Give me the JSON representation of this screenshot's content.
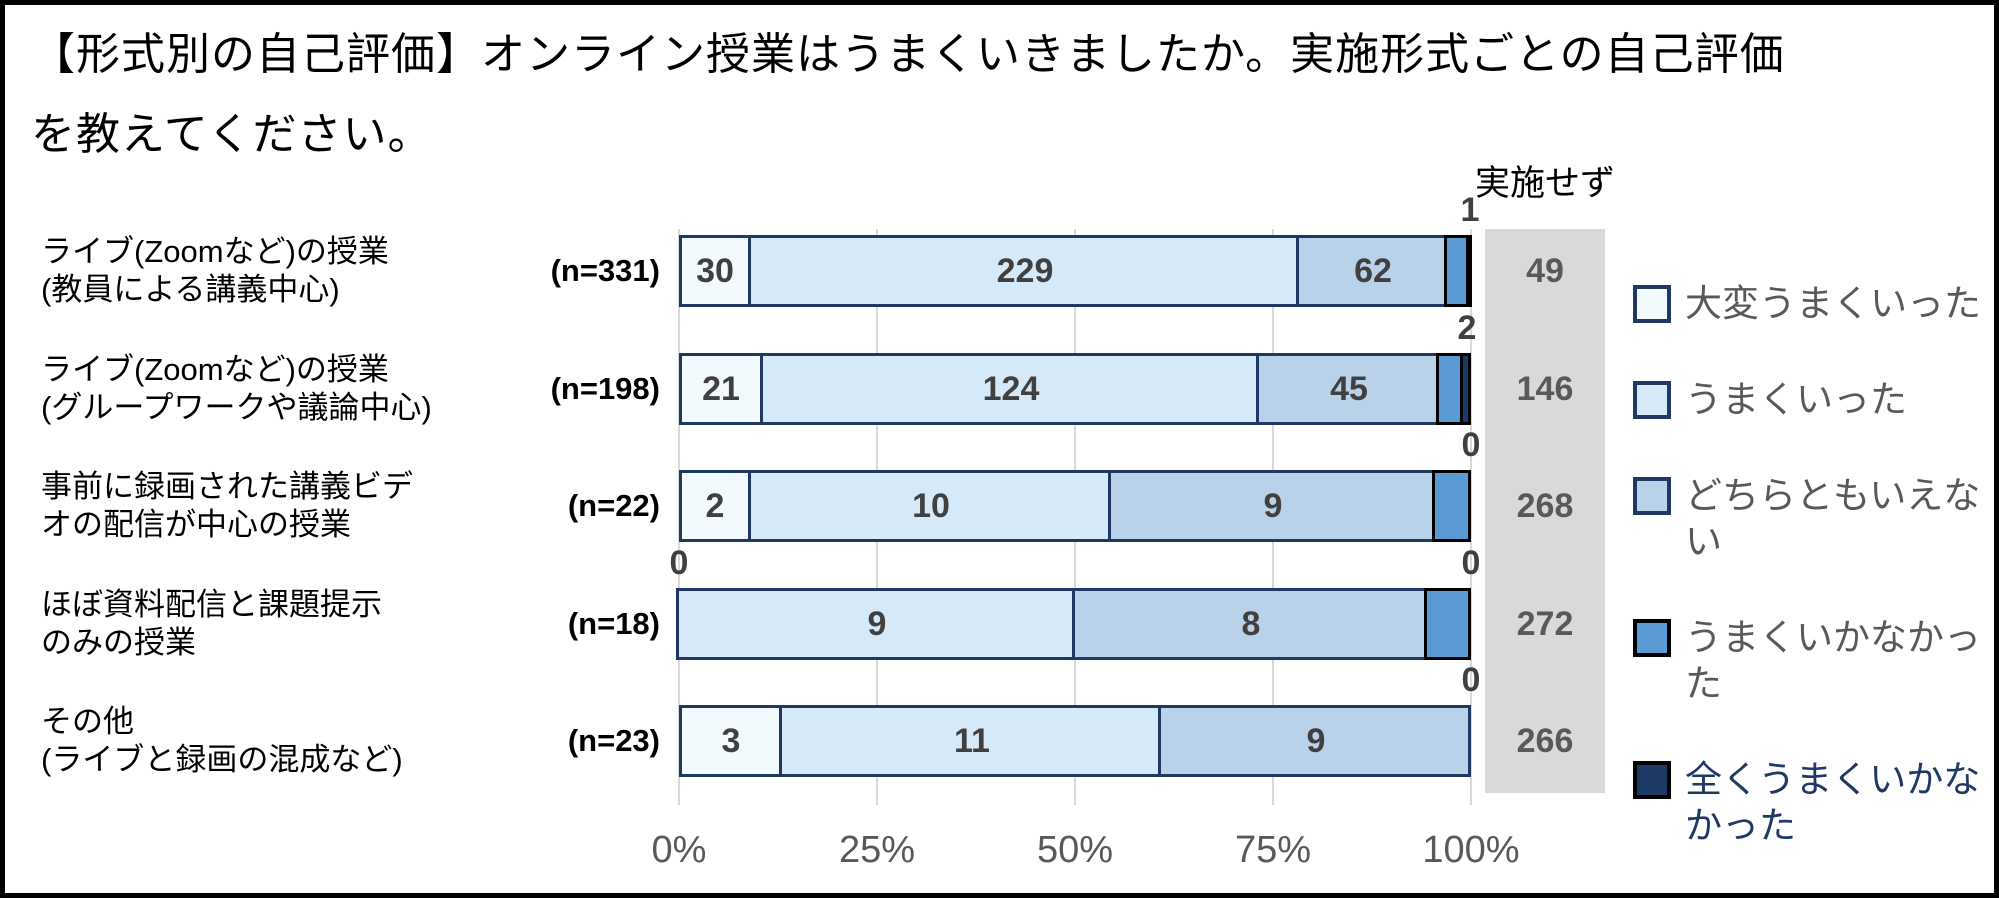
{
  "title": {
    "line1": "【形式別の自己評価】オンライン授業はうまくいきましたか。実施形式ごとの自己評価",
    "line2": "を教えてください。"
  },
  "not_conducted_header": "実施せず",
  "x_axis": {
    "ticks": [
      "0%",
      "25%",
      "50%",
      "75%",
      "100%"
    ]
  },
  "legend": [
    {
      "label": "大変うまくいった",
      "fill": "#F3FAFE",
      "border": "#1F3864",
      "text_color": "#595959"
    },
    {
      "label": "うまくいった",
      "fill": "#D6E9F8",
      "border": "#1F3864",
      "text_color": "#595959"
    },
    {
      "label": "どちらともいえない",
      "fill": "#BAD1EA",
      "border": "#1F3864",
      "text_color": "#595959"
    },
    {
      "label": "うまくいかなかった",
      "fill": "#5B9BD5",
      "border": "#000000",
      "text_color": "#595959"
    },
    {
      "label": "全くうまくいかなかった",
      "fill": "#1C3A63",
      "border": "#000000",
      "text_color": "#1F3864"
    }
  ],
  "chart_data": {
    "type": "bar",
    "stacked": true,
    "orientation": "horizontal",
    "value_unit": "respondent count, bar widths = percent of n",
    "series_names": [
      "大変うまくいった",
      "うまくいった",
      "どちらともいえない",
      "うまくいかなかった",
      "全くうまくいかなかった"
    ],
    "xlim": [
      0,
      100
    ],
    "x_ticks": [
      "0%",
      "25%",
      "50%",
      "75%",
      "100%"
    ],
    "grid": true,
    "legend_position": "right",
    "rows": [
      {
        "label_lines": [
          "ライブ(Zoomなど)の授業",
          "(教員による講義中心)"
        ],
        "n_label": "(n=331)",
        "n": 331,
        "values": [
          30,
          229,
          62,
          9,
          1
        ],
        "not_conducted": 49
      },
      {
        "label_lines": [
          "ライブ(Zoomなど)の授業",
          "(グループワークや議論中心)"
        ],
        "n_label": "(n=198)",
        "n": 198,
        "values": [
          21,
          124,
          45,
          6,
          2
        ],
        "not_conducted": 146
      },
      {
        "label_lines": [
          "事前に録画された講義ビデ",
          "オの配信が中心の授業"
        ],
        "n_label": "(n=22)",
        "n": 22,
        "values": [
          2,
          10,
          9,
          1,
          0
        ],
        "not_conducted": 268
      },
      {
        "label_lines": [
          "ほぼ資料配信と課題提示",
          "のみの授業"
        ],
        "n_label": "(n=18)",
        "n": 18,
        "values": [
          0,
          9,
          8,
          1,
          0
        ],
        "not_conducted": 272
      },
      {
        "label_lines": [
          "その他",
          "(ライブと録画の混成など)"
        ],
        "n_label": "(n=23)",
        "n": 23,
        "values": [
          3,
          11,
          9,
          0,
          0
        ],
        "not_conducted": 266
      }
    ]
  },
  "colors": {
    "segment_fills": [
      "#F3FAFE",
      "#D6E9F8",
      "#BAD1EA",
      "#5B9BD5",
      "#1C3A63"
    ],
    "segment_borders": [
      "#1F3864",
      "#1F3864",
      "#1F3864",
      "#000000",
      "#000000"
    ],
    "grid": "#D9D9D9",
    "not_conducted_bg": "#D9D9D9",
    "data_label": "#404040",
    "axis_label": "#595959",
    "frame_border": "#000000"
  }
}
